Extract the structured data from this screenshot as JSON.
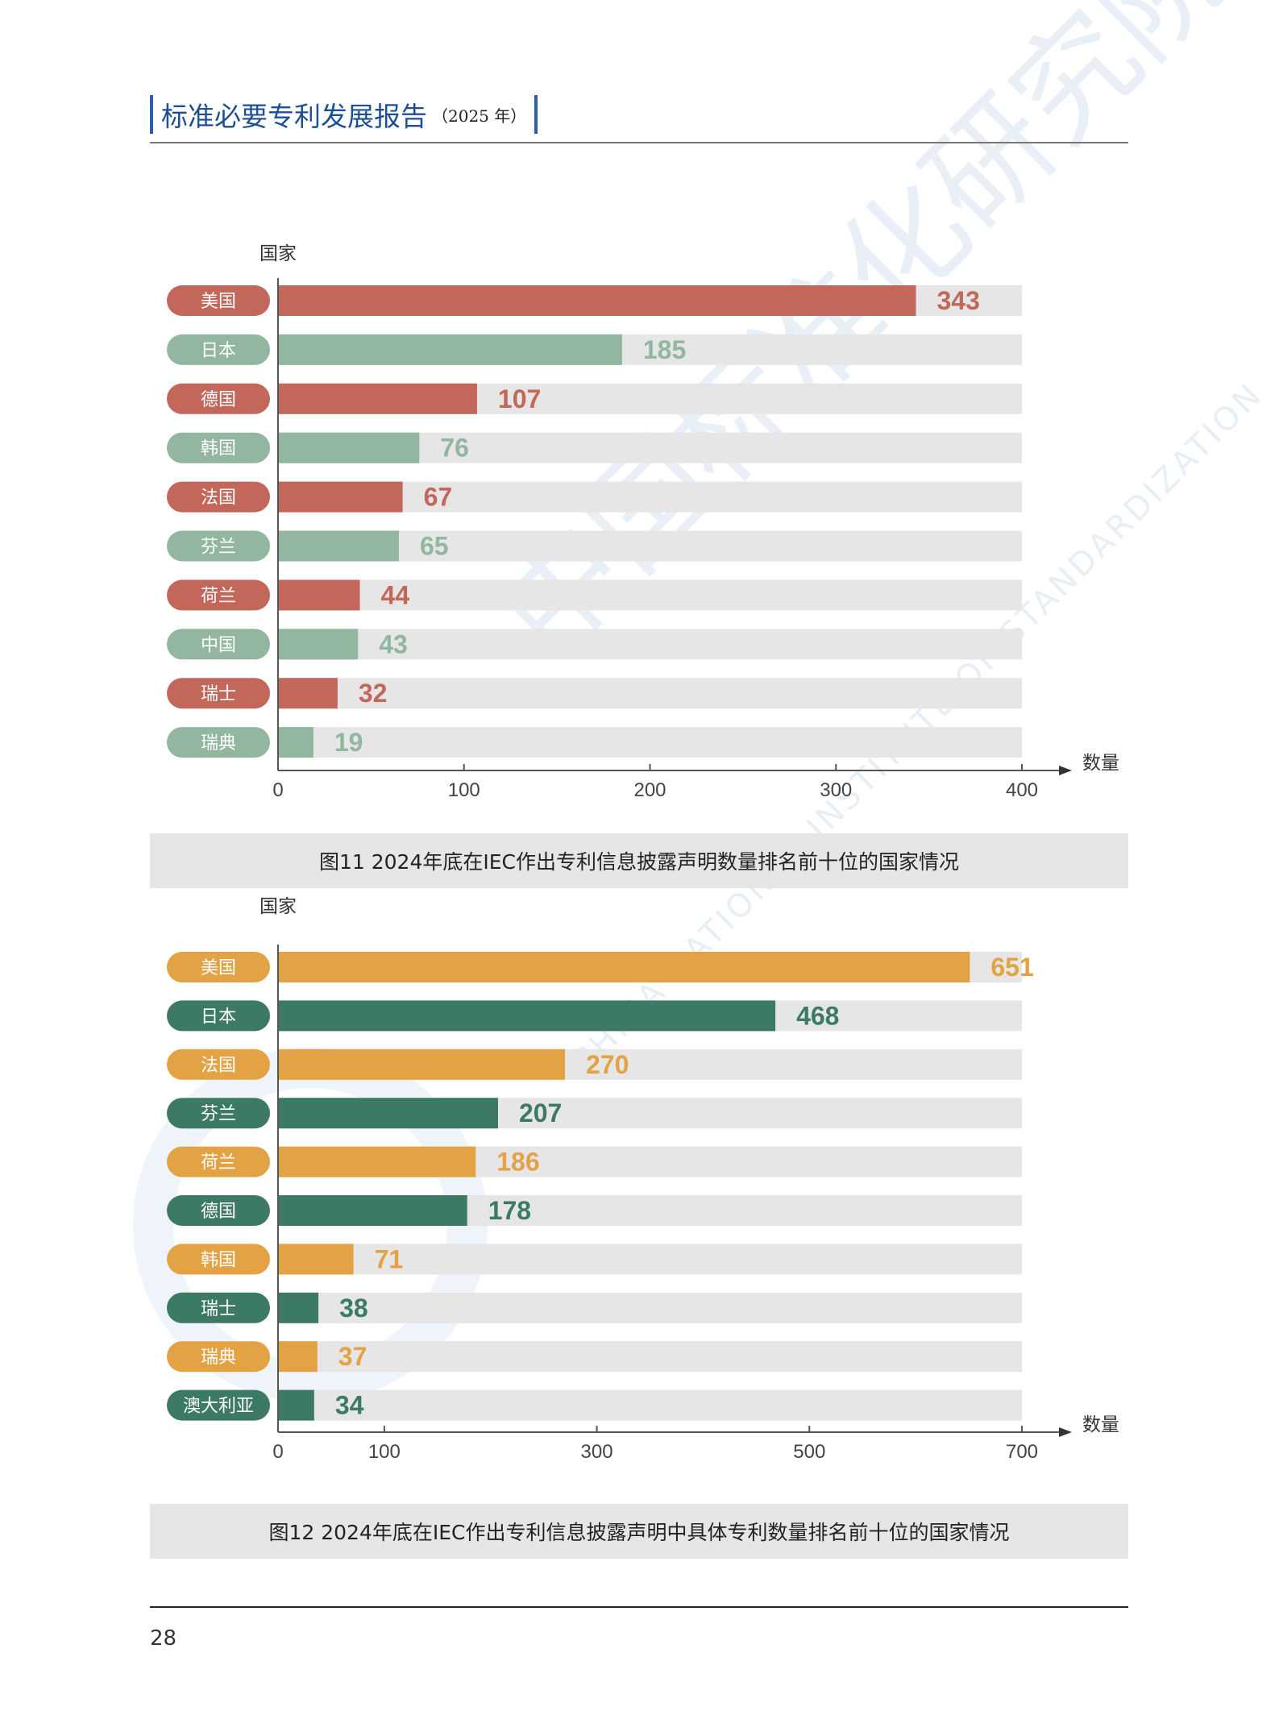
{
  "header": {
    "title": "标准必要专利发展报告",
    "year": "（2025 年）"
  },
  "watermark": {
    "cn": "中国标准化研究院",
    "en": "CHINA NATIONAL INSTITUTE OF STANDARDIZATION"
  },
  "page_number": "28",
  "captions": {
    "fig11": "图11  2024年底在IEC作出专利信息披露声明数量排名前十位的国家情况",
    "fig12": "图12  2024年底在IEC作出专利信息披露声明中具体专利数量排名前十位的国家情况"
  },
  "chart_data": [
    {
      "type": "bar",
      "orientation": "horizontal",
      "ylabel": "国家",
      "xlabel": "数量",
      "categories": [
        "美国",
        "日本",
        "德国",
        "韩国",
        "法国",
        "芬兰",
        "荷兰",
        "中国",
        "瑞士",
        "瑞典"
      ],
      "values": [
        343,
        185,
        107,
        76,
        67,
        65,
        44,
        43,
        32,
        19
      ],
      "xlim": [
        0,
        400
      ],
      "xticks": [
        0,
        100,
        200,
        300,
        400
      ],
      "colors": [
        "#c2675a",
        "#93b6a0"
      ],
      "track_color": "#e6e6e6"
    },
    {
      "type": "bar",
      "orientation": "horizontal",
      "ylabel": "国家",
      "xlabel": "数量",
      "categories": [
        "美国",
        "日本",
        "法国",
        "芬兰",
        "荷兰",
        "德国",
        "韩国",
        "瑞士",
        "瑞典",
        "澳大利亚"
      ],
      "values": [
        651,
        468,
        270,
        207,
        186,
        178,
        71,
        38,
        37,
        34
      ],
      "xlim": [
        0,
        700
      ],
      "xticks": [
        0,
        100,
        300,
        500,
        700
      ],
      "colors": [
        "#e3a244",
        "#3c7a66"
      ],
      "track_color": "#e6e6e6"
    }
  ]
}
